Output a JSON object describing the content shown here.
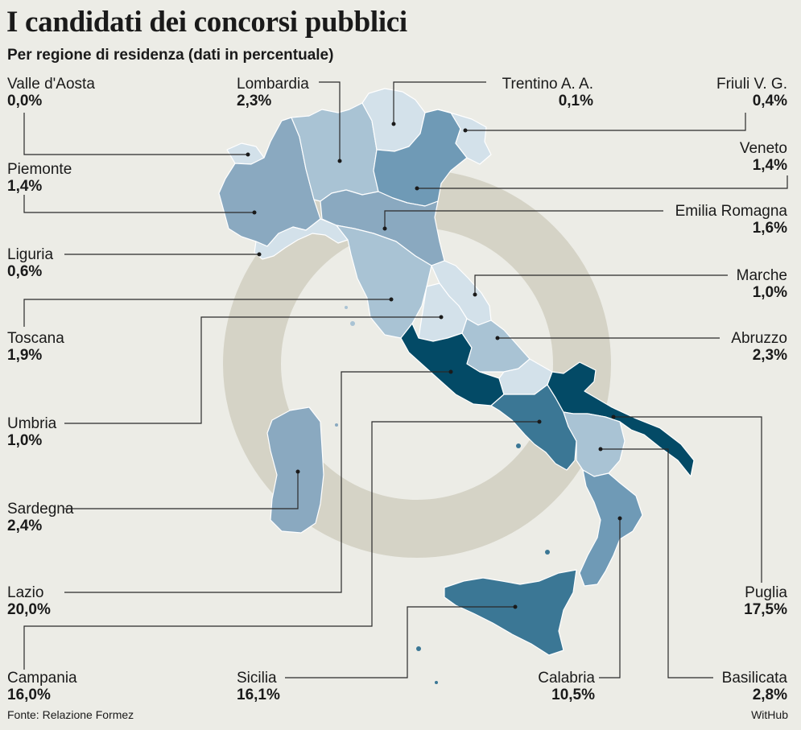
{
  "header": {
    "title": "I candidati dei concorsi pubblici",
    "subtitle": "Per regione di residenza (dati in percentuale)"
  },
  "footer": {
    "source": "Fonte: Relazione Formez",
    "credit": "WitHub"
  },
  "colors": {
    "background": "#ececE6",
    "ring": "#d5d3c6",
    "shade_lightest": "#d3e1ea",
    "shade_light": "#a9c3d4",
    "shade_mid": "#8aa9c0",
    "shade_dark": "#4f86a3",
    "shade_darker": "#3b7795",
    "shade_darkest": "#034a66",
    "leader_line": "#2a2a2a"
  },
  "regions": [
    {
      "name": "Valle d'Aosta",
      "value": "0,0%"
    },
    {
      "name": "Lombardia",
      "value": "2,3%"
    },
    {
      "name": "Trentino A. A.",
      "value": "0,1%"
    },
    {
      "name": "Friuli V. G.",
      "value": "0,4%"
    },
    {
      "name": "Piemonte",
      "value": "1,4%"
    },
    {
      "name": "Veneto",
      "value": "1,4%"
    },
    {
      "name": "Emilia Romagna",
      "value": "1,6%"
    },
    {
      "name": "Liguria",
      "value": "0,6%"
    },
    {
      "name": "Marche",
      "value": "1,0%"
    },
    {
      "name": "Toscana",
      "value": "1,9%"
    },
    {
      "name": "Abruzzo",
      "value": "2,3%"
    },
    {
      "name": "Umbria",
      "value": "1,0%"
    },
    {
      "name": "Sardegna",
      "value": "2,4%"
    },
    {
      "name": "Lazio",
      "value": "20,0%"
    },
    {
      "name": "Puglia",
      "value": "17,5%"
    },
    {
      "name": "Campania",
      "value": "16,0%"
    },
    {
      "name": "Sicilia",
      "value": "16,1%"
    },
    {
      "name": "Calabria",
      "value": "10,5%"
    },
    {
      "name": "Basilicata",
      "value": "2,8%"
    }
  ]
}
